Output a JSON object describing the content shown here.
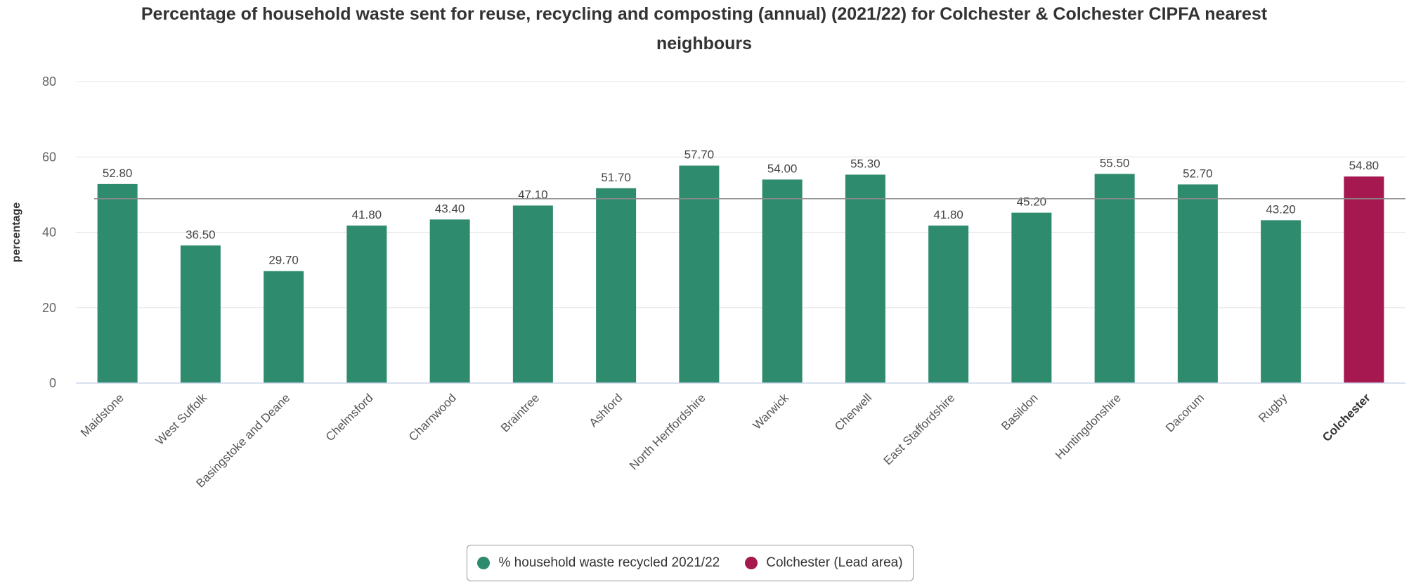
{
  "chart_data": {
    "type": "bar",
    "title": "Percentage of household waste sent for reuse, recycling and composting (annual) (2021/22) for Colchester & Colchester CIPFA nearest neighbours",
    "title_lines": [
      "Percentage of household waste sent for reuse, recycling and composting (annual) (2021/22) for Colchester & Colchester CIPFA nearest",
      "neighbours"
    ],
    "xlabel": "",
    "ylabel": "percentage",
    "ylim": [
      0,
      80
    ],
    "yticks": [
      "0",
      "20",
      "40",
      "60",
      "80"
    ],
    "ytick_values": [
      0,
      20,
      40,
      60,
      80
    ],
    "grid": true,
    "legend_placement": "bottom",
    "categories": [
      "Maidstone",
      "West Suffolk",
      "Basingstoke and Deane",
      "Chelmsford",
      "Charnwood",
      "Braintree",
      "Ashford",
      "North Hertfordshire",
      "Warwick",
      "Cherwell",
      "East Staffordshire",
      "Basildon",
      "Huntingdonshire",
      "Dacorum",
      "Rugby",
      "Colchester"
    ],
    "values": [
      52.8,
      36.5,
      29.7,
      41.8,
      43.4,
      47.1,
      51.7,
      57.7,
      54.0,
      55.3,
      41.8,
      45.2,
      55.5,
      52.7,
      43.2,
      54.8
    ],
    "data_labels": [
      "52.80",
      "36.50",
      "29.70",
      "41.80",
      "43.40",
      "47.10",
      "51.70",
      "57.70",
      "54.00",
      "55.30",
      "41.80",
      "45.20",
      "55.50",
      "52.70",
      "43.20",
      "54.80"
    ],
    "lead_category": "Colchester",
    "average_line": 48.9,
    "series": [
      {
        "name": "% household waste recycled 2021/22",
        "color": "#2e8b6e"
      },
      {
        "name": "Colchester (Lead area)",
        "color": "#a51850"
      }
    ]
  },
  "legend": {
    "items": [
      {
        "label": "% household waste recycled 2021/22",
        "color": "#2e8b6e"
      },
      {
        "label": "Colchester (Lead area)",
        "color": "#a51850"
      }
    ]
  },
  "colors": {
    "bar": "#2e8b6e",
    "lead_bar": "#a51850",
    "grid": "#e6e6e6",
    "axis": "#ccd6eb",
    "average_line": "#8c8c8c"
  }
}
